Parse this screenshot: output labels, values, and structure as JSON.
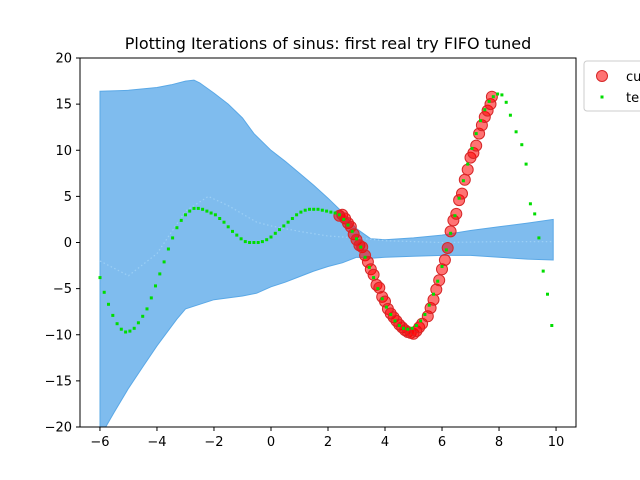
{
  "chart_data": {
    "type": "scatter",
    "title": "Plotting Iterations of sinus: first real try FIFO tuned",
    "xlabel": "",
    "ylabel": "",
    "xlim": [
      -6.7,
      10.7
    ],
    "ylim": [
      -20,
      20
    ],
    "xticks": [
      -6,
      -4,
      -2,
      0,
      2,
      4,
      6,
      8,
      10
    ],
    "yticks": [
      -20,
      -15,
      -10,
      -5,
      0,
      5,
      10,
      15,
      20
    ],
    "xtick_labels": [
      "−6",
      "−4",
      "−2",
      "0",
      "2",
      "4",
      "6",
      "8",
      "10"
    ],
    "ytick_labels": [
      "−20",
      "−15",
      "−10",
      "−5",
      "0",
      "5",
      "10",
      "15",
      "20"
    ],
    "grid": false,
    "legend_position": "top-right, outside plot (clipped)",
    "legend_labels": [
      "cu",
      "te"
    ],
    "colors": {
      "band_fill": "#7fbcee",
      "band_edge": "#5aa8e6",
      "mean_line": "#9ccff5",
      "current_points": "#ff0000",
      "current_points_edge": "#d62728",
      "test_points": "#00dd00",
      "axes": "#000000"
    },
    "confidence_band": {
      "upper": [
        [
          -6,
          16.4
        ],
        [
          -5,
          16.5
        ],
        [
          -4,
          16.8
        ],
        [
          -3.5,
          17.1
        ],
        [
          -3,
          17.5
        ],
        [
          -2.7,
          17.6
        ],
        [
          -2.5,
          17.3
        ],
        [
          -2,
          16.2
        ],
        [
          -1.5,
          15.0
        ],
        [
          -1,
          13.5
        ],
        [
          -0.6,
          11.8
        ],
        [
          0,
          10.0
        ],
        [
          0.5,
          8.8
        ],
        [
          1,
          7.5
        ],
        [
          1.5,
          6.2
        ],
        [
          2,
          4.8
        ],
        [
          2.5,
          3.3
        ],
        [
          3,
          1.5
        ],
        [
          3.5,
          0.4
        ],
        [
          4,
          0.3
        ],
        [
          5,
          0.5
        ],
        [
          6,
          0.8
        ],
        [
          7,
          1.3
        ],
        [
          8,
          1.7
        ],
        [
          9,
          2.1
        ],
        [
          9.9,
          2.5
        ]
      ],
      "lower": [
        [
          9.9,
          -1.9
        ],
        [
          9,
          -1.8
        ],
        [
          8,
          -1.6
        ],
        [
          7,
          -1.4
        ],
        [
          6,
          -1.4
        ],
        [
          5,
          -1.5
        ],
        [
          4,
          -1.6
        ],
        [
          3.5,
          -1.7
        ],
        [
          3,
          -1.6
        ],
        [
          2.5,
          -2.2
        ],
        [
          2,
          -2.6
        ],
        [
          1.5,
          -3.1
        ],
        [
          1,
          -3.7
        ],
        [
          0.5,
          -4.3
        ],
        [
          0,
          -4.8
        ],
        [
          -0.5,
          -5.5
        ],
        [
          -1,
          -5.8
        ],
        [
          -1.5,
          -6.0
        ],
        [
          -2,
          -6.2
        ],
        [
          -2.5,
          -6.7
        ],
        [
          -3,
          -7.2
        ],
        [
          -3.3,
          -8.3
        ],
        [
          -4,
          -11.2
        ],
        [
          -4.5,
          -13.5
        ],
        [
          -5,
          -15.8
        ],
        [
          -5.5,
          -18.4
        ],
        [
          -5.8,
          -20
        ],
        [
          -6,
          -20
        ]
      ]
    },
    "mean_line": [
      [
        -6,
        -2.0
      ],
      [
        -5,
        -3.6
      ],
      [
        -4,
        -1.2
      ],
      [
        -3,
        3.4
      ],
      [
        -2.2,
        5.0
      ],
      [
        -1.5,
        4.0
      ],
      [
        -0.5,
        2.2
      ],
      [
        0,
        1.8
      ],
      [
        1,
        1.2
      ],
      [
        2,
        0.7
      ],
      [
        3,
        0.5
      ],
      [
        4,
        0.2
      ],
      [
        6,
        0.0
      ],
      [
        8,
        0.1
      ],
      [
        9.9,
        0.1
      ]
    ],
    "series": [
      {
        "name": "cu",
        "kind": "circles",
        "points": [
          [
            2.4,
            2.9
          ],
          [
            2.5,
            3.0
          ],
          [
            2.6,
            2.6
          ],
          [
            2.7,
            2.1
          ],
          [
            2.8,
            1.7
          ],
          [
            2.9,
            0.9
          ],
          [
            3.0,
            0.3
          ],
          [
            3.1,
            -0.3
          ],
          [
            3.2,
            -0.5
          ],
          [
            3.3,
            -1.4
          ],
          [
            3.4,
            -2.1
          ],
          [
            3.5,
            -2.9
          ],
          [
            3.6,
            -3.5
          ],
          [
            3.7,
            -4.6
          ],
          [
            3.8,
            -4.9
          ],
          [
            3.9,
            -5.9
          ],
          [
            4.0,
            -6.4
          ],
          [
            4.1,
            -7.2
          ],
          [
            4.2,
            -7.7
          ],
          [
            4.3,
            -8.1
          ],
          [
            4.4,
            -8.5
          ],
          [
            4.5,
            -8.9
          ],
          [
            4.6,
            -9.2
          ],
          [
            4.7,
            -9.5
          ],
          [
            4.8,
            -9.7
          ],
          [
            4.9,
            -9.8
          ],
          [
            5.0,
            -9.9
          ],
          [
            5.1,
            -9.6
          ],
          [
            5.2,
            -9.2
          ],
          [
            5.3,
            -8.8
          ],
          [
            5.5,
            -8.0
          ],
          [
            5.6,
            -7.1
          ],
          [
            5.7,
            -6.2
          ],
          [
            5.8,
            -5.1
          ],
          [
            5.9,
            -4.1
          ],
          [
            6.0,
            -2.9
          ],
          [
            6.1,
            -1.9
          ],
          [
            6.2,
            -0.6
          ],
          [
            6.3,
            1.2
          ],
          [
            6.4,
            2.4
          ],
          [
            6.5,
            3.1
          ],
          [
            6.6,
            4.6
          ],
          [
            6.7,
            5.3
          ],
          [
            6.8,
            6.8
          ],
          [
            6.9,
            7.9
          ],
          [
            7.0,
            9.2
          ],
          [
            7.1,
            9.7
          ],
          [
            7.2,
            10.5
          ],
          [
            7.3,
            11.8
          ],
          [
            7.4,
            12.7
          ],
          [
            7.5,
            13.6
          ],
          [
            7.6,
            14.3
          ],
          [
            7.7,
            15.0
          ],
          [
            7.75,
            15.8
          ]
        ]
      },
      {
        "name": "te",
        "kind": "dots",
        "points": [
          [
            -6.0,
            -3.8
          ],
          [
            -5.85,
            -5.4
          ],
          [
            -5.7,
            -6.7
          ],
          [
            -5.55,
            -7.9
          ],
          [
            -5.4,
            -8.8
          ],
          [
            -5.25,
            -9.4
          ],
          [
            -5.1,
            -9.7
          ],
          [
            -4.95,
            -9.6
          ],
          [
            -4.8,
            -9.3
          ],
          [
            -4.65,
            -8.7
          ],
          [
            -4.5,
            -8.0
          ],
          [
            -4.35,
            -7.2
          ],
          [
            -4.2,
            -6.0
          ],
          [
            -4.05,
            -4.7
          ],
          [
            -3.9,
            -3.4
          ],
          [
            -3.75,
            -2.1
          ],
          [
            -3.6,
            -0.7
          ],
          [
            -3.45,
            0.5
          ],
          [
            -3.3,
            1.6
          ],
          [
            -3.15,
            2.4
          ],
          [
            -3.0,
            3.0
          ],
          [
            -2.85,
            3.4
          ],
          [
            -2.7,
            3.7
          ],
          [
            -2.55,
            3.7
          ],
          [
            -2.4,
            3.6
          ],
          [
            -2.25,
            3.4
          ],
          [
            -2.1,
            3.2
          ],
          [
            -1.95,
            3.0
          ],
          [
            -1.8,
            2.6
          ],
          [
            -1.65,
            2.2
          ],
          [
            -1.5,
            1.7
          ],
          [
            -1.35,
            1.2
          ],
          [
            -1.2,
            0.8
          ],
          [
            -1.05,
            0.4
          ],
          [
            -0.9,
            0.1
          ],
          [
            -0.75,
            0.0
          ],
          [
            -0.6,
            0.0
          ],
          [
            -0.45,
            0.0
          ],
          [
            -0.3,
            0.1
          ],
          [
            -0.15,
            0.3
          ],
          [
            0.0,
            0.6
          ],
          [
            0.15,
            1.0
          ],
          [
            0.3,
            1.4
          ],
          [
            0.45,
            1.8
          ],
          [
            0.6,
            2.2
          ],
          [
            0.75,
            2.6
          ],
          [
            0.9,
            3.0
          ],
          [
            1.05,
            3.3
          ],
          [
            1.2,
            3.5
          ],
          [
            1.35,
            3.6
          ],
          [
            1.5,
            3.6
          ],
          [
            1.65,
            3.6
          ],
          [
            1.8,
            3.5
          ],
          [
            1.95,
            3.4
          ],
          [
            2.1,
            3.3
          ],
          [
            2.25,
            3.2
          ],
          [
            2.4,
            3.0
          ],
          [
            2.55,
            2.5
          ],
          [
            2.7,
            1.9
          ],
          [
            2.85,
            1.2
          ],
          [
            3.0,
            0.4
          ],
          [
            3.15,
            -0.5
          ],
          [
            3.3,
            -1.6
          ],
          [
            3.45,
            -2.7
          ],
          [
            3.6,
            -3.8
          ],
          [
            3.75,
            -5.0
          ],
          [
            3.9,
            -6.1
          ],
          [
            4.05,
            -7.0
          ],
          [
            4.2,
            -7.8
          ],
          [
            4.35,
            -8.5
          ],
          [
            4.5,
            -9.0
          ],
          [
            4.65,
            -9.3
          ],
          [
            4.8,
            -9.4
          ],
          [
            4.95,
            -9.3
          ],
          [
            5.1,
            -9.0
          ],
          [
            5.25,
            -8.5
          ],
          [
            5.4,
            -7.8
          ],
          [
            5.55,
            -6.8
          ],
          [
            5.7,
            -5.6
          ],
          [
            5.85,
            -4.2
          ],
          [
            6.0,
            -2.6
          ],
          [
            6.15,
            -0.8
          ],
          [
            6.3,
            1.0
          ],
          [
            6.45,
            2.9
          ],
          [
            6.6,
            4.8
          ],
          [
            6.75,
            6.7
          ],
          [
            6.9,
            8.5
          ],
          [
            7.05,
            10.2
          ],
          [
            7.2,
            11.8
          ],
          [
            7.35,
            13.2
          ],
          [
            7.5,
            14.4
          ],
          [
            7.65,
            15.3
          ],
          [
            7.8,
            15.8
          ],
          [
            7.95,
            16.1
          ],
          [
            8.1,
            16.0
          ],
          [
            8.25,
            15.2
          ],
          [
            8.4,
            13.8
          ],
          [
            8.6,
            12.0
          ],
          [
            8.8,
            10.6
          ],
          [
            8.95,
            8.5
          ],
          [
            9.1,
            4.2
          ],
          [
            9.25,
            3.1
          ],
          [
            9.4,
            0.5
          ],
          [
            9.55,
            -3.1
          ],
          [
            9.7,
            -5.6
          ],
          [
            9.85,
            -9.0
          ]
        ]
      }
    ]
  }
}
